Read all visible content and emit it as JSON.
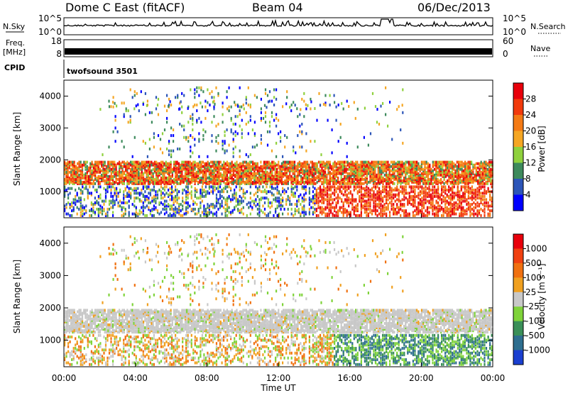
{
  "header": {
    "station": "Dome C East (fitACF)",
    "beam": "Beam 04",
    "date": "06/Dec/2013"
  },
  "strips": {
    "nsky_label": "N.Sky",
    "nsky_ticks": [
      "10^5",
      "10^0"
    ],
    "nsearch_label": "N.Search",
    "nsearch_ticks": [
      "10^5",
      "10^0"
    ],
    "freq_label": "Freq.",
    "freq_unit": "[MHz]",
    "freq_ticks": [
      "18",
      "8"
    ],
    "nave_label": "Nave",
    "nave_ticks": [
      "60",
      "0"
    ],
    "cpid_label": "CPID",
    "cpid_value": "twofsound 3501"
  },
  "colors": {
    "power_scale": [
      "#0000ff",
      "#2c55b8",
      "#3d8a5c",
      "#8fd13d",
      "#f5a623",
      "#f47a14",
      "#f23a0c",
      "#e8000b"
    ],
    "velocity_scale": [
      "#1a3fd0",
      "#2e6e8f",
      "#3a8f58",
      "#7fd33a",
      "#c8c8c8",
      "#f0a020",
      "#f07010",
      "#f04010",
      "#e8000b"
    ]
  },
  "chart_data": [
    {
      "type": "heatmap",
      "name": "power",
      "ylabel": "Slant Range [km]",
      "xlabel": "",
      "x_ticks": [
        "00:00",
        "04:00",
        "08:00",
        "12:00",
        "16:00",
        "20:00",
        "00:00"
      ],
      "x_range_hours": [
        0,
        24
      ],
      "y_ticks": [
        1000,
        2000,
        3000,
        4000
      ],
      "ylim": [
        180,
        4500
      ],
      "colorbar_label": "Power [dB]",
      "colorbar_ticks": [
        "28",
        "24",
        "20",
        "16",
        "12",
        "8",
        "4"
      ],
      "colorbar_range": [
        0,
        32
      ]
    },
    {
      "type": "heatmap",
      "name": "velocity",
      "ylabel": "Slant Range [km]",
      "xlabel": "Time UT",
      "x_ticks": [
        "00:00",
        "04:00",
        "08:00",
        "12:00",
        "16:00",
        "20:00",
        "00:00"
      ],
      "x_range_hours": [
        0,
        24
      ],
      "y_ticks": [
        1000,
        2000,
        3000,
        4000
      ],
      "ylim": [
        180,
        4500
      ],
      "colorbar_label": "Velocity [m s⁻¹]",
      "colorbar_ticks": [
        "1000",
        "500",
        "100",
        "25",
        "-25",
        "-100",
        "-500",
        "-1000"
      ]
    }
  ]
}
